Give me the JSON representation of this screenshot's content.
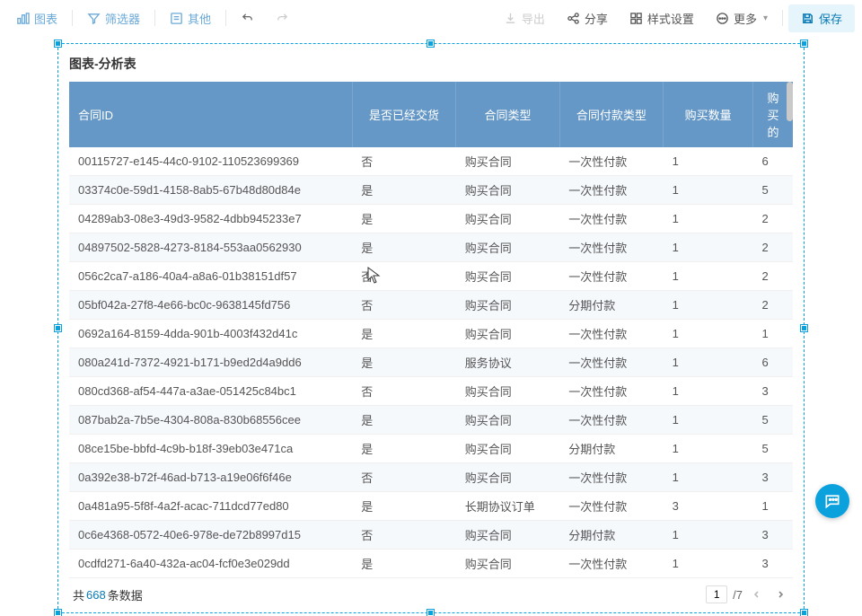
{
  "toolbar": {
    "chart": "图表",
    "filter": "筛选器",
    "other": "其他",
    "export": "导出",
    "share": "分享",
    "style": "样式设置",
    "more": "更多",
    "save": "保存"
  },
  "panel": {
    "title": "图表-分析表"
  },
  "table": {
    "type": "table",
    "header_bg": "#6598c6",
    "header_text_color": "#ffffff",
    "row_alt_bg": "#f5f9fc",
    "row_bg": "#ffffff",
    "columns": [
      "合同ID",
      "是否已经交货",
      "合同类型",
      "合同付款类型",
      "购买数量",
      "购买的"
    ],
    "rows": [
      [
        "00115727-e145-44c0-9102-110523699369",
        "否",
        "购买合同",
        "一次性付款",
        "1",
        "6"
      ],
      [
        "03374c0e-59d1-4158-8ab5-67b48d80d84e",
        "是",
        "购买合同",
        "一次性付款",
        "1",
        "5"
      ],
      [
        "04289ab3-08e3-49d3-9582-4dbb945233e7",
        "是",
        "购买合同",
        "一次性付款",
        "1",
        "2"
      ],
      [
        "04897502-5828-4273-8184-553aa0562930",
        "是",
        "购买合同",
        "一次性付款",
        "1",
        "2"
      ],
      [
        "056c2ca7-a186-40a4-a8a6-01b38151df57",
        "否",
        "购买合同",
        "一次性付款",
        "1",
        "2"
      ],
      [
        "05bf042a-27f8-4e66-bc0c-9638145fd756",
        "否",
        "购买合同",
        "分期付款",
        "1",
        "2"
      ],
      [
        "0692a164-8159-4dda-901b-4003f432d41c",
        "是",
        "购买合同",
        "一次性付款",
        "1",
        "1"
      ],
      [
        "080a241d-7372-4921-b171-b9ed2d4a9dd6",
        "是",
        "服务协议",
        "一次性付款",
        "1",
        "6"
      ],
      [
        "080cd368-af54-447a-a3ae-051425c84bc1",
        "否",
        "购买合同",
        "一次性付款",
        "1",
        "3"
      ],
      [
        "087bab2a-7b5e-4304-808a-830b68556cee",
        "是",
        "购买合同",
        "一次性付款",
        "1",
        "5"
      ],
      [
        "08ce15be-bbfd-4c9b-b18f-39eb03e471ca",
        "是",
        "购买合同",
        "分期付款",
        "1",
        "5"
      ],
      [
        "0a392e38-b72f-46ad-b713-a19e06f6f46e",
        "否",
        "购买合同",
        "一次性付款",
        "1",
        "3"
      ],
      [
        "0a481a95-5f8f-4a2f-acac-711dcd77ed80",
        "是",
        "长期协议订单",
        "一次性付款",
        "3",
        "1"
      ],
      [
        "0c6e4368-0572-40e6-978e-de72b8997d15",
        "否",
        "购买合同",
        "分期付款",
        "1",
        "3"
      ],
      [
        "0cdfd271-6a40-432a-ac04-fcf0e3e029dd",
        "是",
        "购买合同",
        "一次性付款",
        "1",
        "3"
      ]
    ]
  },
  "footer": {
    "prefix": "共 ",
    "count": "668",
    "suffix": " 条数据",
    "page_current": "1",
    "page_total": "/7"
  },
  "colors": {
    "accent": "#0aa1dd",
    "link": "#0a7bb5",
    "toolbar_icon": "#6aa9d8"
  }
}
